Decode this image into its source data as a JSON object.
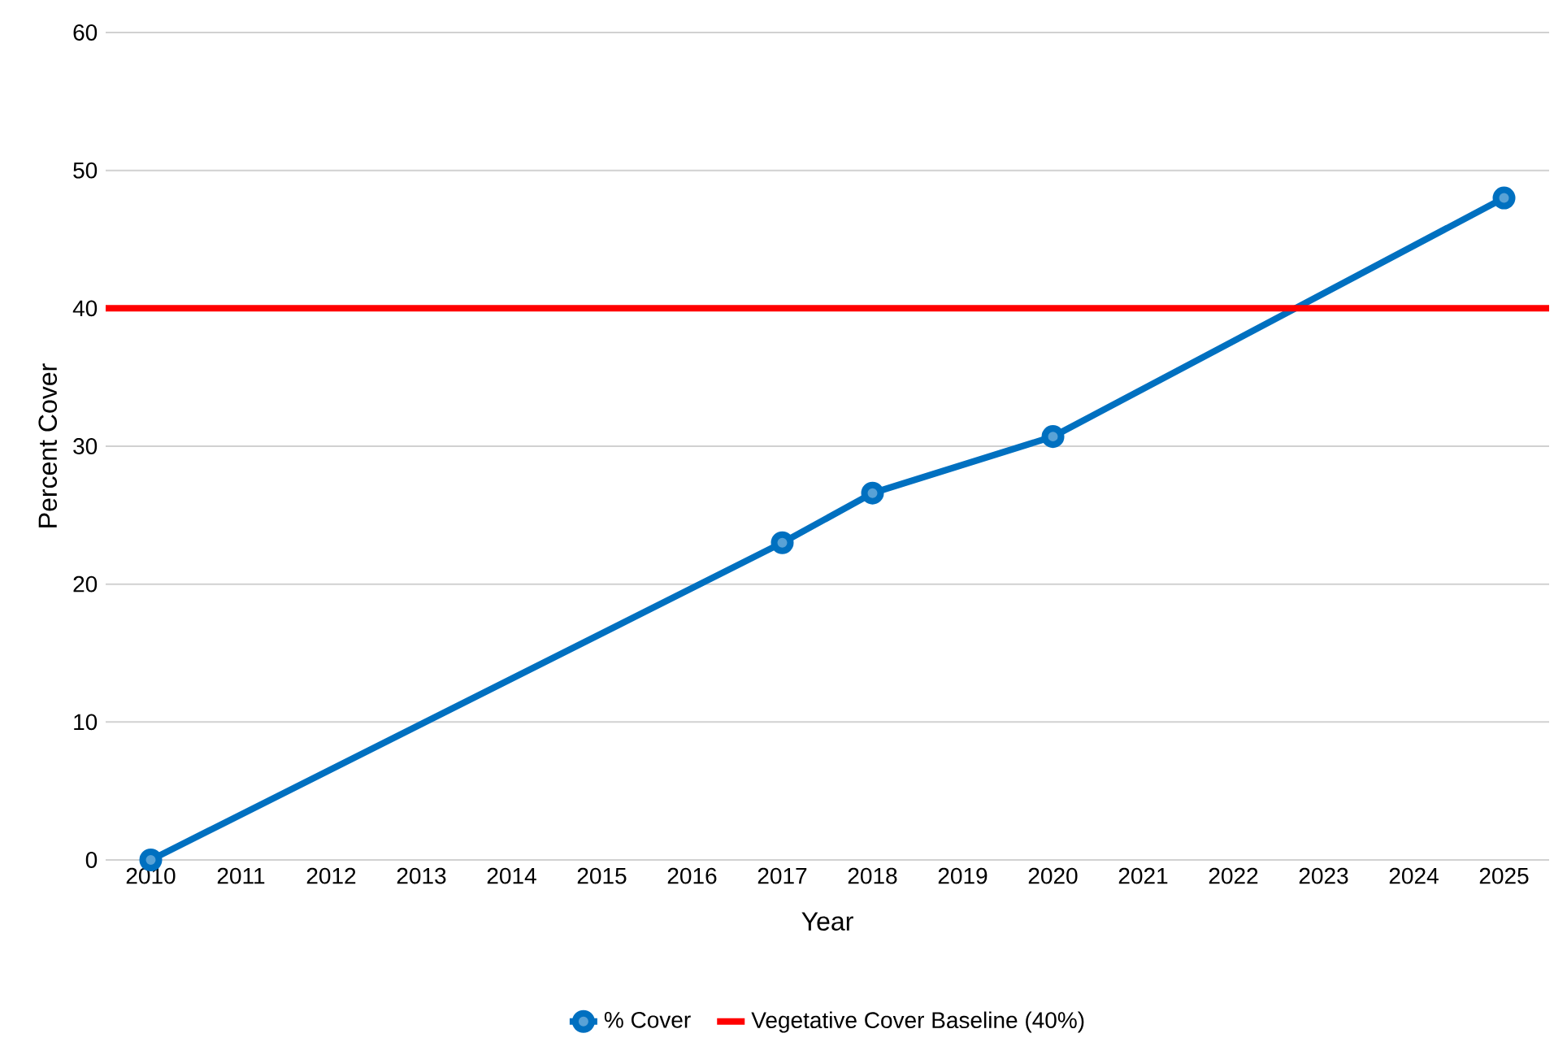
{
  "chart_data": {
    "type": "line",
    "xlabel": "Year",
    "ylabel": "Percent Cover",
    "x": [
      2010,
      2017,
      2018,
      2020,
      2025
    ],
    "series": [
      {
        "name": "% Cover",
        "color": "#0070c0",
        "values": [
          0,
          23.0,
          26.6,
          30.7,
          48.0
        ]
      }
    ],
    "xlim": [
      2009.5,
      2025.5
    ],
    "xticks": [
      2010,
      2011,
      2012,
      2013,
      2014,
      2015,
      2016,
      2017,
      2018,
      2019,
      2020,
      2021,
      2022,
      2023,
      2024,
      2025
    ],
    "ylim": [
      0,
      60
    ],
    "yticks": [
      0,
      10,
      20,
      30,
      40,
      50,
      60
    ],
    "ref_lines": [
      {
        "axis": "y",
        "value": 40,
        "label": "Vegetative Cover Baseline (40%)",
        "color": "#ff0000"
      }
    ],
    "grid": "y",
    "legend": "bottom",
    "marker": "circle",
    "line_style": "solid"
  }
}
